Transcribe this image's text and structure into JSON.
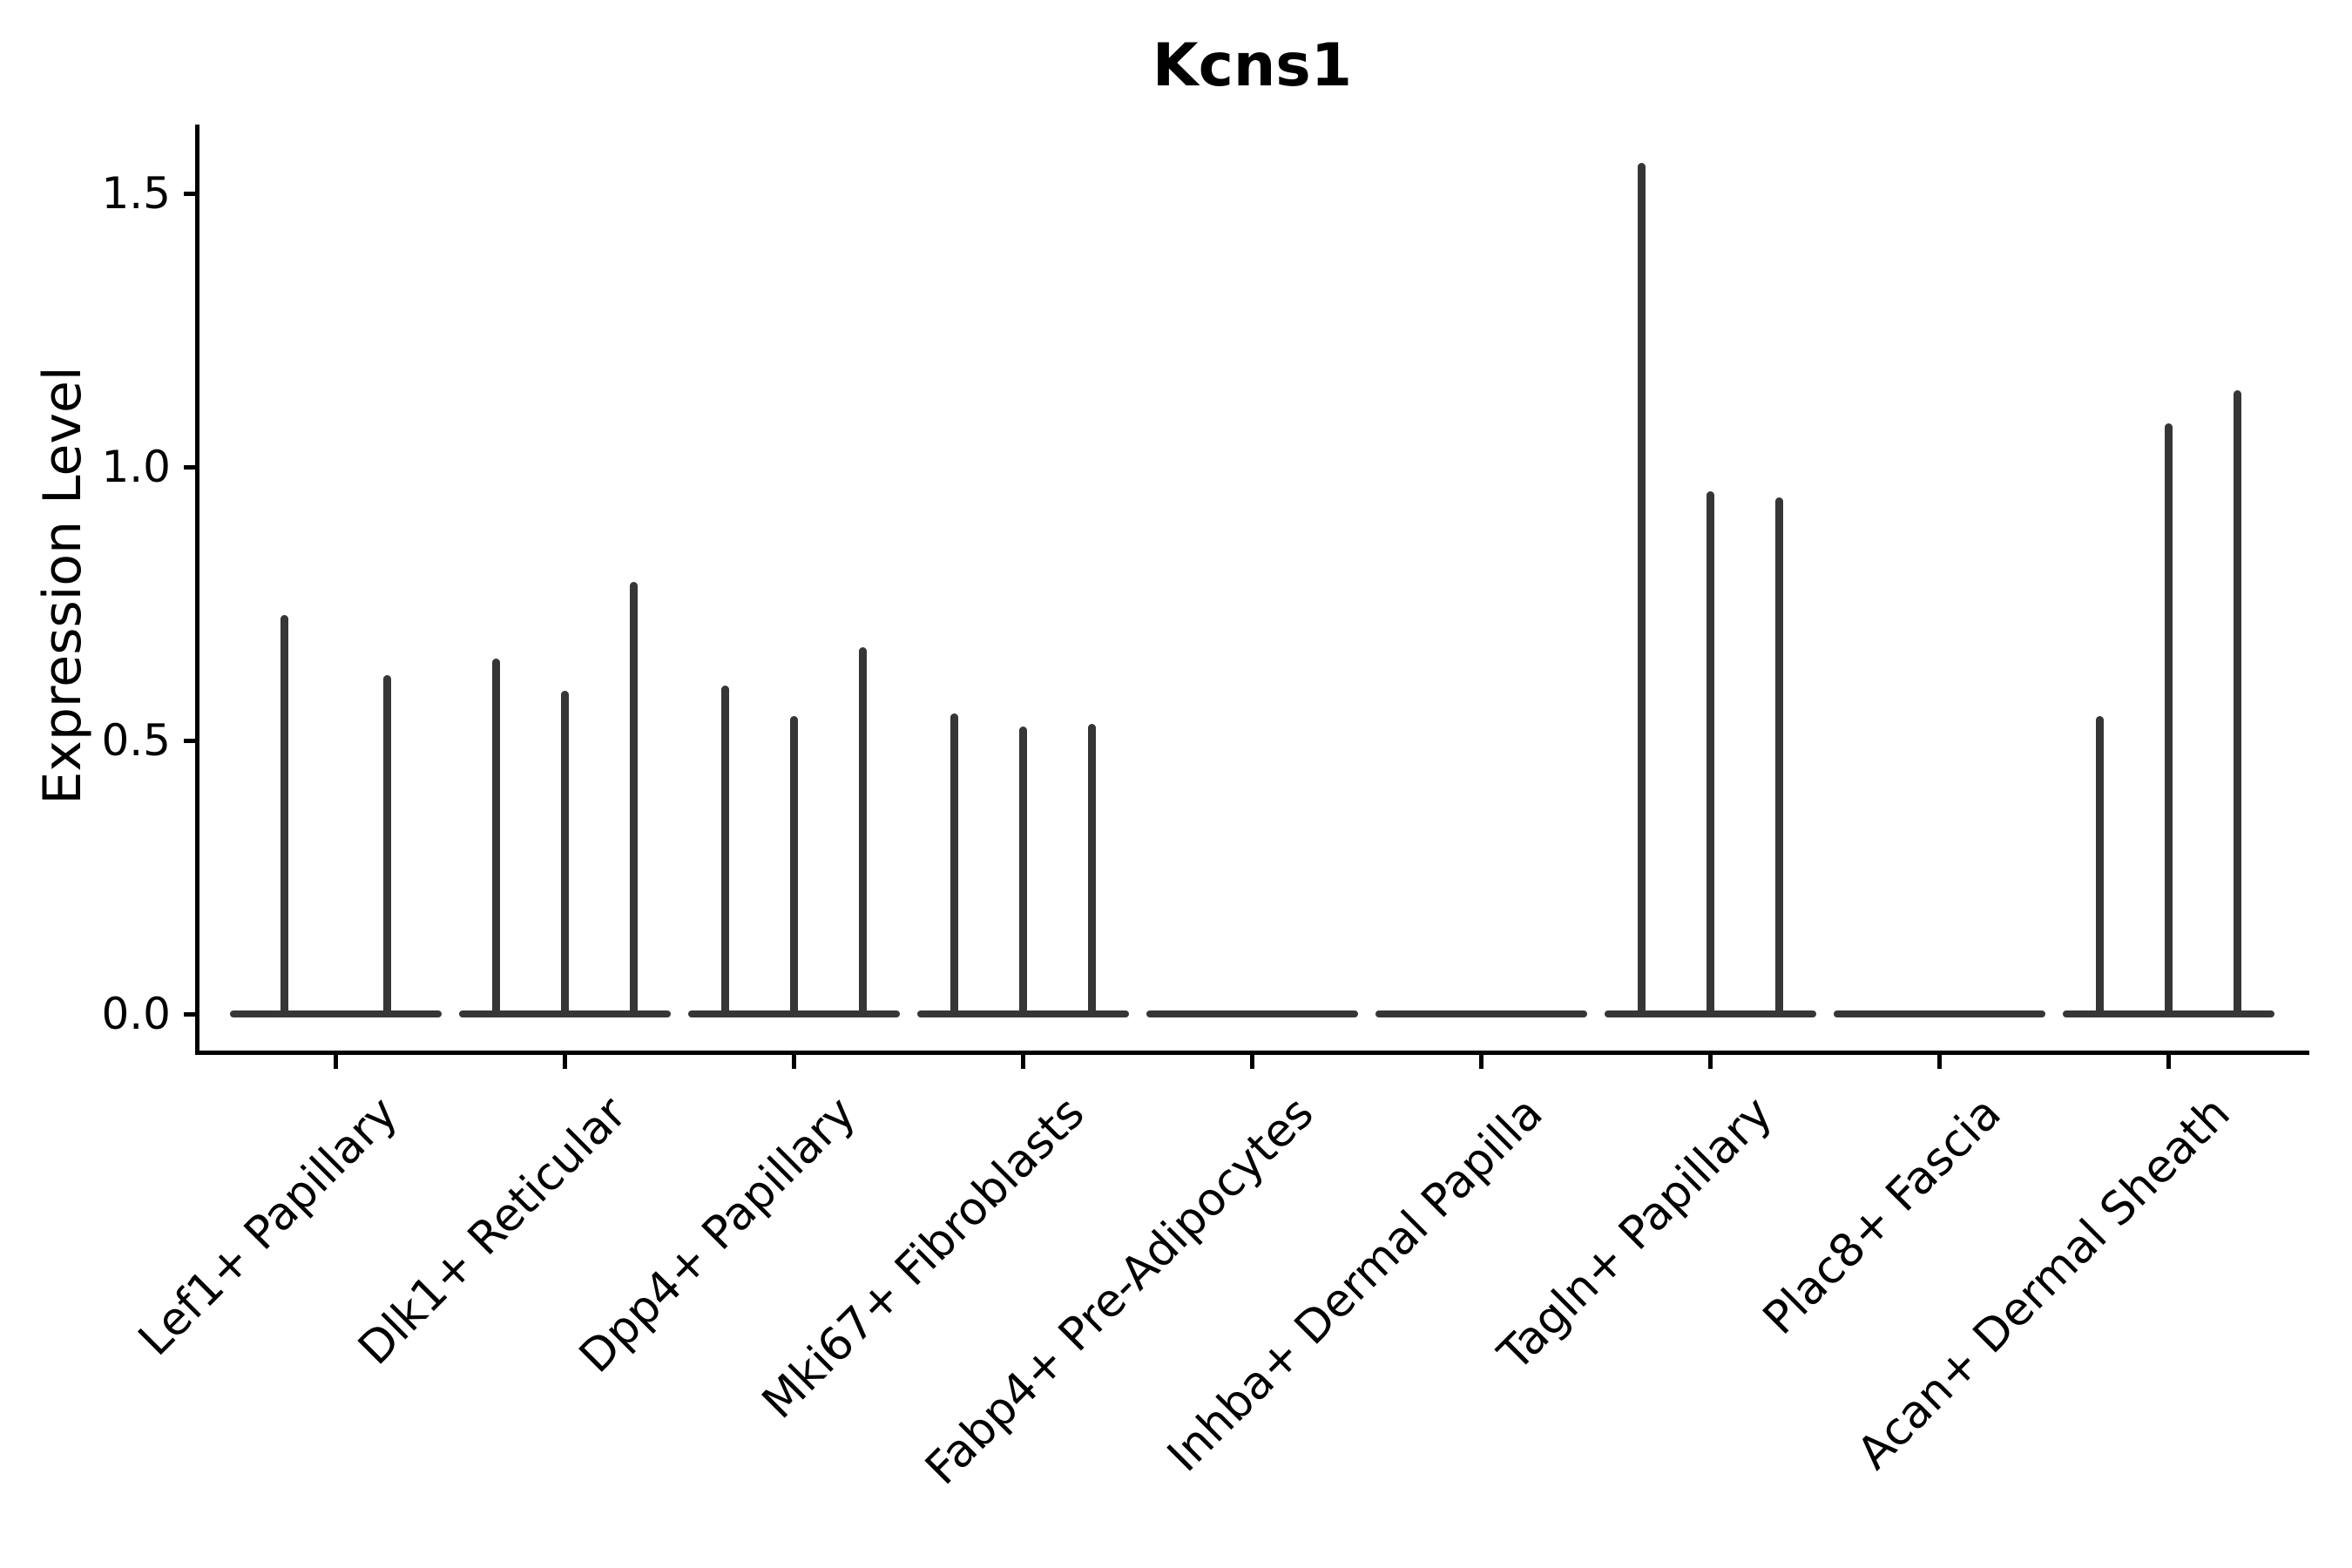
{
  "chart_data": {
    "type": "violin",
    "title": "Kcns1",
    "ylabel": "Expression Level",
    "xlabel": "",
    "yticks": [
      0.0,
      0.5,
      1.0,
      1.5
    ],
    "ytick_labels": [
      "0.0",
      "0.5",
      "1.0",
      "1.5"
    ],
    "ylim": [
      0,
      1.63
    ],
    "grid": false,
    "legend": "none",
    "description": "Thin violin plot; each cluster shows a flat zero-expression base with narrow vertical spikes (one per dodged sub-violin) reaching the maximum expression level.",
    "categories": [
      "Lef1+ Papillary",
      "Dlk1+ Reticular",
      "Dpp4+ Papillary",
      "Mki67+ Fibroblasts",
      "Fabp4+ Pre-Adipocytes",
      "Inhba+ Dermal Papilla",
      "Tagln+ Papillary",
      "Plac8+ Fascia",
      "Acan+ Dermal Sheath"
    ],
    "violins": [
      {
        "category": "Lef1+ Papillary",
        "spike_heights": [
          0.73,
          0.62
        ]
      },
      {
        "category": "Dlk1+ Reticular",
        "spike_heights": [
          0.65,
          0.59,
          0.79
        ]
      },
      {
        "category": "Dpp4+ Papillary",
        "spike_heights": [
          0.6,
          0.545,
          0.67
        ]
      },
      {
        "category": "Mki67+ Fibroblasts",
        "spike_heights": [
          0.55,
          0.525,
          0.53
        ]
      },
      {
        "category": "Fabp4+ Pre-Adipocytes",
        "spike_heights": []
      },
      {
        "category": "Inhba+ Dermal Papilla",
        "spike_heights": []
      },
      {
        "category": "Tagln+ Papillary",
        "spike_heights": [
          1.555,
          0.955,
          0.945
        ]
      },
      {
        "category": "Plac8+ Fascia",
        "spike_heights": []
      },
      {
        "category": "Acan+ Dermal Sheath",
        "spike_heights": [
          0.545,
          1.08,
          1.14
        ]
      }
    ],
    "colors": {
      "violin": "#363636",
      "axis": "#000000",
      "text": "#000000",
      "background": "#ffffff"
    }
  }
}
